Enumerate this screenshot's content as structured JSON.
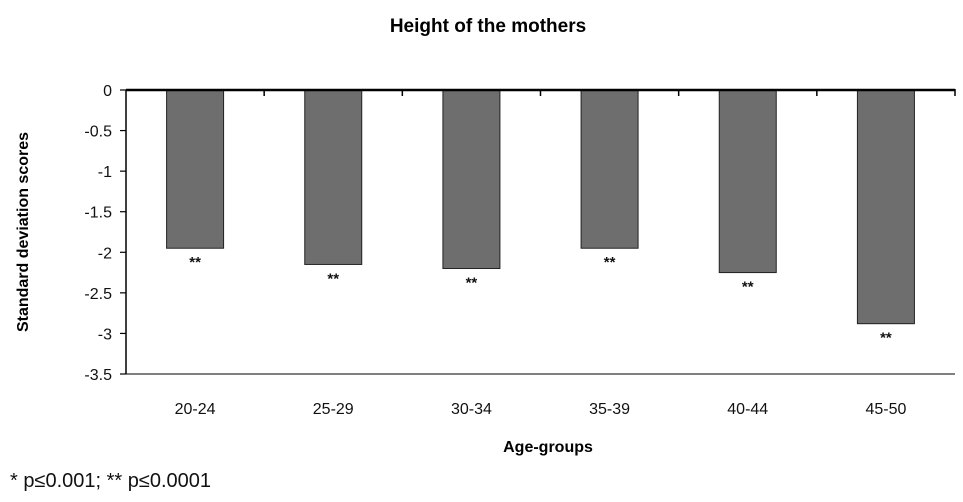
{
  "chart_data": {
    "type": "bar",
    "title": "Height of the mothers",
    "xlabel": "Age-groups",
    "ylabel": "Standard deviation scores",
    "categories": [
      "20-24",
      "25-29",
      "30-34",
      "35-39",
      "40-44",
      "45-50"
    ],
    "values": [
      -1.95,
      -2.15,
      -2.2,
      -1.95,
      -2.25,
      -2.88
    ],
    "annotations": [
      "**",
      "**",
      "**",
      "**",
      "**",
      "**"
    ],
    "ylim": [
      -3.5,
      0
    ],
    "yticks": [
      "0",
      "-0.5",
      "-1",
      "-1.5",
      "-2",
      "-2.5",
      "-3",
      "-3.5"
    ],
    "grid": false,
    "bar_color": "#6e6e6e"
  },
  "footnote": "* p≤0.001; ** p≤0.0001"
}
